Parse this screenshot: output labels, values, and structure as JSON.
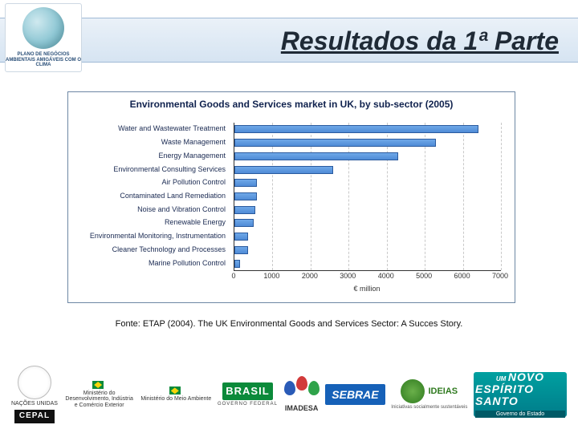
{
  "header": {
    "title": "Resultados da 1ª Parte",
    "logo_caption": "PLANO DE NEGÓCIOS AMBIENTAIS AMIGÁVEIS COM O CLIMA"
  },
  "chart": {
    "type": "bar-horizontal",
    "title": "Environmental Goods and Services market in UK, by sub-sector (2005)",
    "x_axis_label": "€ million",
    "xlim": [
      0,
      7000
    ],
    "xtick_step": 1000,
    "xticks": [
      0,
      1000,
      2000,
      3000,
      4000,
      5000,
      6000,
      7000
    ],
    "bar_color": "#4f8bd6",
    "bar_border": "#2a5a9e",
    "grid_color": "#c9c9c9",
    "background_color": "#ffffff",
    "border_color": "#6d87a4",
    "title_color": "#10224e",
    "label_color": "#1a2a52",
    "title_fontsize": 12,
    "label_fontsize": 9,
    "categories": [
      {
        "label": "Water and Wastewater Treatment",
        "value": 6400
      },
      {
        "label": "Waste Management",
        "value": 5300
      },
      {
        "label": "Energy Management",
        "value": 4300
      },
      {
        "label": "Environmental Consulting Services",
        "value": 2600
      },
      {
        "label": "Air Pollution Control",
        "value": 600
      },
      {
        "label": "Contaminated Land Remediation",
        "value": 600
      },
      {
        "label": "Noise and Vibration Control",
        "value": 550
      },
      {
        "label": "Renewable Energy",
        "value": 500
      },
      {
        "label": "Environmental Monitoring, Instrumentation",
        "value": 350
      },
      {
        "label": "Cleaner Technology and Processes",
        "value": 350
      },
      {
        "label": "Marine Pollution Control",
        "value": 150
      }
    ]
  },
  "source": "Fonte: ETAP (2004). The UK Environmental Goods and Services Sector: A Succes Story.",
  "footer": {
    "un": "NAÇÕES UNIDAS",
    "cepal": "CEPAL",
    "mdic": "Ministério do Desenvolvimento, Indústria e Comércio Exterior",
    "mma": "Ministério do Meio Ambiente",
    "brasil": "BRASIL",
    "brasil_sub": "GOVERNO FEDERAL",
    "imadesa": "IMADESA",
    "sebrae": "SEBRAE",
    "ideias": "IDEIAS",
    "ideias_sub": "Iniciativas socialmente sustentáveis",
    "novo_um": "UM",
    "novo": "NOVO",
    "es": "ESPÍRITO SANTO",
    "es_foot": "Governo do Estado"
  }
}
